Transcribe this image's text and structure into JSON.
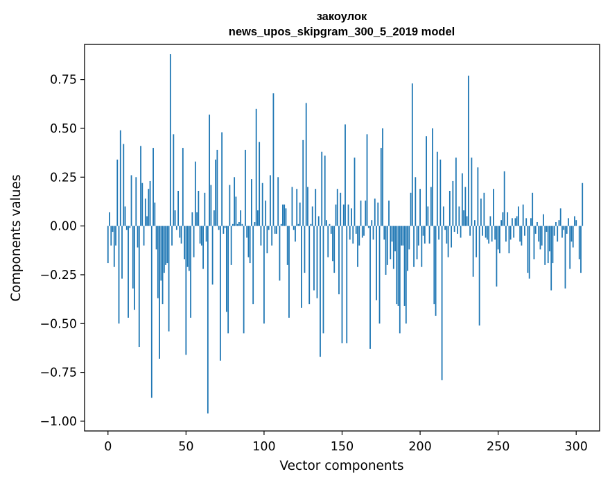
{
  "chart_data": {
    "type": "bar",
    "title": [
      "закоулок",
      "news_upos_skipgram_300_5_2019 model"
    ],
    "xlabel": "Vector components",
    "ylabel": "Components values",
    "xlim": [
      -15,
      315
    ],
    "ylim": [
      -1.05,
      0.93
    ],
    "xticks": [
      0,
      50,
      100,
      150,
      200,
      250,
      300
    ],
    "xtick_labels": [
      "0",
      "50",
      "100",
      "150",
      "200",
      "250",
      "300"
    ],
    "yticks": [
      -1.0,
      -0.75,
      -0.5,
      -0.25,
      0.0,
      0.25,
      0.5,
      0.75
    ],
    "ytick_labels": [
      "−1.00",
      "−0.75",
      "−0.50",
      "−0.25",
      "0.00",
      "0.25",
      "0.50",
      "0.75"
    ],
    "grid": false,
    "bar_color": "#1f77b4",
    "x": "0..299",
    "values": [
      -0.19,
      0.07,
      -0.1,
      -0.03,
      -0.21,
      -0.1,
      0.34,
      -0.5,
      0.49,
      -0.27,
      0.42,
      0.1,
      -0.02,
      -0.47,
      -0.01,
      0.26,
      -0.32,
      -0.43,
      0.25,
      -0.11,
      -0.62,
      0.41,
      0.22,
      -0.1,
      0.14,
      0.05,
      0.19,
      0.23,
      -0.88,
      0.4,
      0.12,
      -0.12,
      -0.37,
      -0.68,
      -0.28,
      -0.4,
      -0.24,
      -0.2,
      -0.19,
      -0.54,
      0.88,
      -0.1,
      0.47,
      0.08,
      -0.02,
      0.18,
      -0.06,
      -0.09,
      0.4,
      -0.17,
      -0.66,
      -0.21,
      -0.23,
      -0.47,
      0.07,
      -0.16,
      0.33,
      0.07,
      0.18,
      -0.09,
      -0.1,
      -0.22,
      0.17,
      -0.08,
      -0.96,
      0.57,
      0.21,
      -0.3,
      0.08,
      0.34,
      0.39,
      -0.02,
      -0.69,
      0.48,
      -0.04,
      -0.01,
      -0.44,
      -0.55,
      0.21,
      -0.2,
      0.01,
      0.25,
      0.15,
      0.01,
      0.02,
      0.08,
      0.01,
      -0.55,
      0.39,
      -0.06,
      -0.16,
      -0.19,
      0.24,
      -0.4,
      0.02,
      0.6,
      0.08,
      0.43,
      -0.1,
      0.22,
      -0.5,
      0.13,
      -0.14,
      -0.02,
      0.26,
      -0.1,
      0.68,
      -0.04,
      -0.04,
      0.25,
      -0.28,
      0.01,
      0.11,
      0.11,
      0.09,
      -0.2,
      -0.47,
      0.0,
      0.2,
      -0.02,
      -0.08,
      0.19,
      0.01,
      0.12,
      -0.42,
      0.44,
      -0.24,
      0.63,
      0.2,
      -0.4,
      0.01,
      0.1,
      -0.33,
      0.19,
      -0.37,
      0.05,
      -0.67,
      0.38,
      -0.55,
      0.36,
      0.03,
      -0.16,
      0.01,
      -0.04,
      -0.18,
      -0.24,
      0.11,
      0.19,
      -0.35,
      0.17,
      -0.6,
      0.11,
      0.52,
      -0.6,
      0.11,
      -0.07,
      0.09,
      -0.09,
      0.35,
      -0.04,
      -0.21,
      -0.1,
      0.13,
      -0.06,
      -0.05,
      0.13,
      0.47,
      -0.01,
      -0.63,
      0.03,
      -0.07,
      0.14,
      -0.38,
      0.12,
      -0.5,
      0.4,
      0.5,
      -0.07,
      -0.25,
      -0.2,
      0.13,
      -0.17,
      -0.08,
      -0.22,
      -0.13,
      -0.4,
      -0.41,
      -0.55,
      -0.1,
      -0.1,
      -0.41,
      -0.5,
      -0.23,
      -0.12,
      0.17,
      0.73,
      -0.21,
      0.25,
      -0.17,
      -0.1,
      0.19,
      -0.21,
      -0.05,
      -0.09,
      0.46,
      0.1,
      -0.09,
      0.2,
      0.5,
      -0.4,
      -0.46,
      0.38,
      -0.07,
      0.34,
      -0.79,
      0.1,
      -0.02,
      -0.09,
      -0.16,
      0.18,
      -0.11,
      0.23,
      -0.03,
      0.35,
      -0.04,
      0.1,
      -0.06,
      0.27,
      0.08,
      0.2,
      0.05,
      0.77,
      -0.05,
      0.35,
      -0.26,
      0.03,
      -0.16,
      0.3,
      -0.51,
      0.14,
      -0.05,
      0.17,
      -0.06,
      -0.07,
      -0.09,
      0.05,
      -0.08,
      0.19,
      -0.07,
      -0.31,
      -0.12,
      -0.14,
      0.03,
      0.07,
      0.28,
      -0.08,
      0.07,
      -0.14,
      -0.07,
      0.04,
      -0.06,
      0.04,
      0.05,
      0.1,
      -0.08,
      -0.1,
      0.11,
      -0.05,
      0.04,
      -0.24,
      -0.27,
      0.04,
      0.17,
      -0.17,
      -0.04,
      0.02,
      -0.08,
      -0.12,
      -0.1,
      0.06,
      -0.2,
      -0.03,
      -0.19,
      -0.13,
      -0.33,
      -0.19,
      -0.05,
      0.02,
      -0.08,
      0.03,
      0.09,
      -0.06,
      -0.02,
      -0.32,
      -0.04,
      0.04,
      -0.22,
      -0.08,
      -0.11,
      0.05,
      0.03,
      0.0,
      -0.17,
      -0.24,
      0.22
    ]
  }
}
